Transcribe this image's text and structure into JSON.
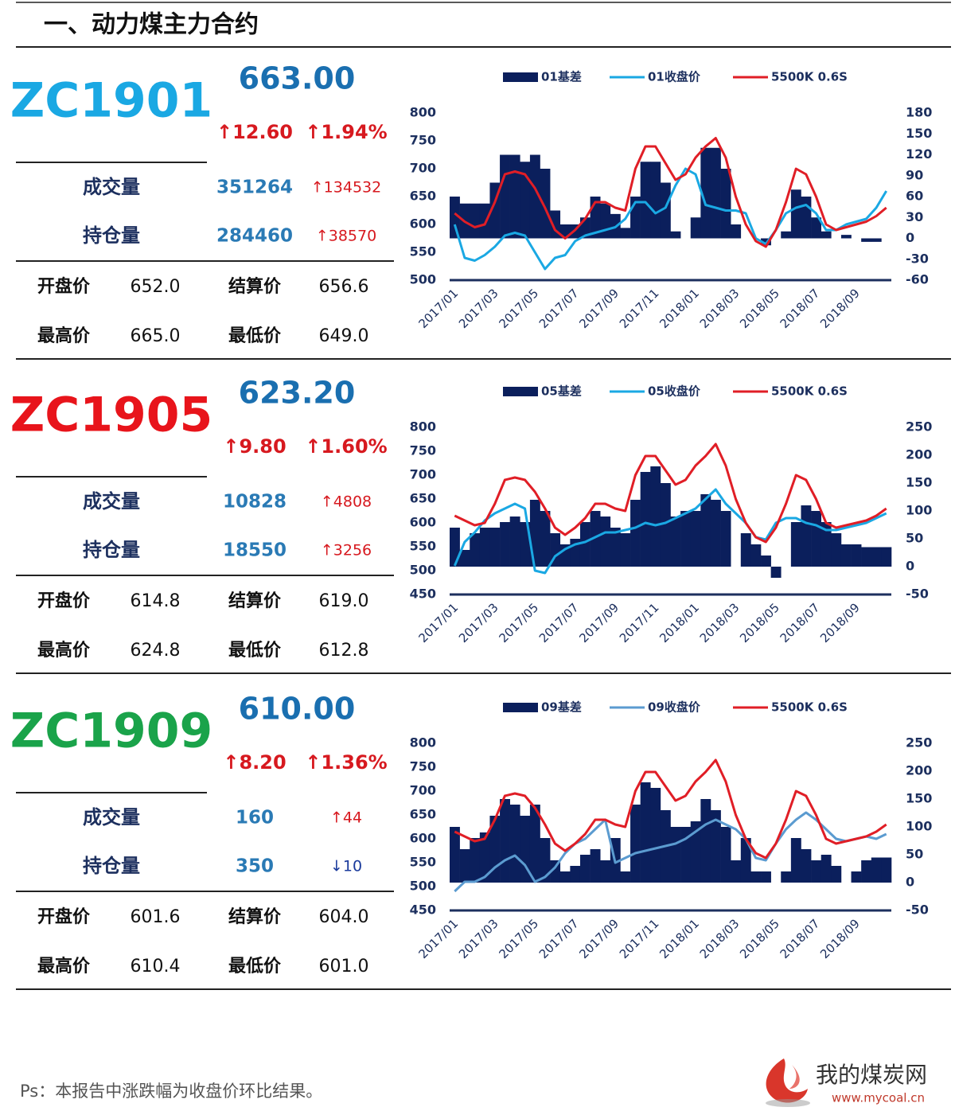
{
  "header": {
    "title": "一、动力煤主力合约"
  },
  "labels": {
    "volume": "成交量",
    "oi": "持仓量",
    "open": "开盘价",
    "settle": "结算价",
    "high": "最高价",
    "low": "最低价"
  },
  "contracts": [
    {
      "code": "ZC1901",
      "code_color": "#1aa8e3",
      "price": "663.00",
      "change": "↑12.60",
      "change_pct": "↑1.94%",
      "volume": "351264",
      "volume_change": "↑134532",
      "oi": "284460",
      "oi_change": "↑38570",
      "open": "652.0",
      "settle": "656.6",
      "high": "665.0",
      "low": "649.0",
      "chart_data": {
        "type": "bar-line",
        "categories": [
          "2017/01",
          null,
          null,
          null,
          "2017/03",
          null,
          null,
          null,
          "2017/05",
          null,
          null,
          null,
          "2017/07",
          null,
          null,
          null,
          "2017/09",
          null,
          null,
          null,
          "2017/11",
          null,
          null,
          null,
          "2018/01",
          null,
          null,
          null,
          "2018/03",
          null,
          null,
          null,
          "2018/05",
          null,
          null,
          null,
          "2018/07",
          null,
          null,
          null,
          "2018/09",
          null,
          null,
          null
        ],
        "ylim": [
          500,
          800
        ],
        "yticks": [
          500,
          550,
          600,
          650,
          700,
          750,
          800
        ],
        "y2lim": [
          -60,
          180
        ],
        "y2ticks": [
          -60,
          -30,
          0,
          30,
          60,
          90,
          120,
          150,
          180
        ],
        "series": [
          {
            "name": "01基差",
            "type": "bar",
            "axis": "y2",
            "color": "#0b1f5c",
            "values": [
              60,
              50,
              50,
              50,
              80,
              120,
              120,
              110,
              120,
              100,
              40,
              20,
              20,
              30,
              60,
              50,
              35,
              15,
              60,
              110,
              110,
              80,
              10,
              0,
              30,
              130,
              130,
              100,
              20,
              0,
              0,
              -10,
              0,
              10,
              70,
              60,
              30,
              10,
              0,
              5,
              0,
              -5,
              -5,
              0
            ]
          },
          {
            "name": "01收盘价",
            "type": "line",
            "color": "#1aa8e3",
            "values": [
              600,
              540,
              535,
              545,
              560,
              580,
              585,
              580,
              550,
              520,
              540,
              545,
              570,
              580,
              585,
              590,
              595,
              610,
              640,
              640,
              620,
              630,
              670,
              700,
              690,
              635,
              630,
              625,
              625,
              620,
              575,
              565,
              590,
              620,
              630,
              635,
              620,
              590,
              590,
              600,
              605,
              610,
              630,
              660
            ]
          },
          {
            "name": "5500K 0.6S",
            "type": "line",
            "color": "#e01e26",
            "values": [
              620,
              605,
              595,
              600,
              640,
              690,
              695,
              690,
              665,
              630,
              590,
              575,
              590,
              610,
              640,
              640,
              630,
              625,
              700,
              740,
              740,
              710,
              680,
              690,
              720,
              740,
              755,
              720,
              650,
              600,
              570,
              560,
              590,
              640,
              700,
              690,
              650,
              600,
              590,
              595,
              600,
              605,
              615,
              630
            ]
          }
        ]
      }
    },
    {
      "code": "ZC1905",
      "code_color": "#e8141b",
      "price": "623.20",
      "change": "↑9.80",
      "change_pct": "↑1.60%",
      "volume": "10828",
      "volume_change": "↑4808",
      "oi": "18550",
      "oi_change": "↑3256",
      "open": "614.8",
      "settle": "619.0",
      "high": "624.8",
      "low": "612.8",
      "chart_data": {
        "type": "bar-line",
        "categories": [
          "2017/01",
          null,
          null,
          null,
          "2017/03",
          null,
          null,
          null,
          "2017/05",
          null,
          null,
          null,
          "2017/07",
          null,
          null,
          null,
          "2017/09",
          null,
          null,
          null,
          "2017/11",
          null,
          null,
          null,
          "2018/01",
          null,
          null,
          null,
          "2018/03",
          null,
          null,
          null,
          "2018/05",
          null,
          null,
          null,
          "2018/07",
          null,
          null,
          null,
          "2018/09",
          null,
          null,
          null
        ],
        "ylim": [
          450,
          800
        ],
        "yticks": [
          450,
          500,
          550,
          600,
          650,
          700,
          750,
          800
        ],
        "y2lim": [
          -50,
          250
        ],
        "y2ticks": [
          -50,
          0,
          50,
          100,
          150,
          200,
          250
        ],
        "series": [
          {
            "name": "05基差",
            "type": "bar",
            "axis": "y2",
            "color": "#0b1f5c",
            "values": [
              70,
              30,
              60,
              70,
              70,
              80,
              90,
              80,
              120,
              100,
              60,
              40,
              50,
              80,
              100,
              90,
              70,
              60,
              120,
              170,
              180,
              150,
              90,
              100,
              100,
              130,
              120,
              100,
              0,
              60,
              40,
              20,
              -20,
              0,
              80,
              110,
              100,
              80,
              60,
              40,
              40,
              35,
              35,
              35
            ]
          },
          {
            "name": "05收盘价",
            "type": "line",
            "color": "#1aa8e3",
            "values": [
              510,
              560,
              580,
              605,
              620,
              630,
              640,
              630,
              500,
              495,
              530,
              545,
              555,
              560,
              570,
              580,
              580,
              585,
              590,
              600,
              595,
              600,
              610,
              620,
              630,
              650,
              670,
              640,
              620,
              600,
              570,
              565,
              600,
              610,
              610,
              600,
              595,
              585,
              585,
              590,
              595,
              600,
              610,
              620
            ]
          },
          {
            "name": "5500K 0.6S",
            "type": "line",
            "color": "#e01e26",
            "values": [
              615,
              605,
              595,
              600,
              640,
              690,
              695,
              690,
              665,
              630,
              590,
              575,
              590,
              610,
              640,
              640,
              630,
              625,
              700,
              740,
              740,
              710,
              680,
              690,
              720,
              740,
              765,
              720,
              650,
              600,
              570,
              560,
              590,
              640,
              700,
              690,
              650,
              600,
              590,
              595,
              600,
              605,
              615,
              630
            ]
          }
        ]
      }
    },
    {
      "code": "ZC1909",
      "code_color": "#1aa34a",
      "price": "610.00",
      "change": "↑8.20",
      "change_pct": "↑1.36%",
      "volume": "160",
      "volume_change": "↑44",
      "oi": "350",
      "oi_change": "↓10",
      "open": "601.6",
      "settle": "604.0",
      "high": "610.4",
      "low": "601.0",
      "chart_data": {
        "type": "bar-line",
        "categories": [
          "2017/01",
          null,
          null,
          null,
          "2017/03",
          null,
          null,
          null,
          "2017/05",
          null,
          null,
          null,
          "2017/07",
          null,
          null,
          null,
          "2017/09",
          null,
          null,
          null,
          "2017/11",
          null,
          null,
          null,
          "2018/01",
          null,
          null,
          null,
          "2018/03",
          null,
          null,
          null,
          "2018/05",
          null,
          null,
          null,
          "2018/07",
          null,
          null,
          null,
          "2018/09",
          null,
          null,
          null
        ],
        "ylim": [
          450,
          800
        ],
        "yticks": [
          450,
          500,
          550,
          600,
          650,
          700,
          750,
          800
        ],
        "y2lim": [
          -50,
          250
        ],
        "y2ticks": [
          -50,
          0,
          50,
          100,
          150,
          200,
          250
        ],
        "series": [
          {
            "name": "09基差",
            "type": "bar",
            "axis": "y2",
            "color": "#0b1f5c",
            "values": [
              100,
              60,
              80,
              90,
              120,
              150,
              140,
              120,
              140,
              80,
              40,
              20,
              30,
              50,
              60,
              40,
              80,
              20,
              140,
              180,
              170,
              130,
              100,
              100,
              110,
              150,
              130,
              100,
              40,
              80,
              20,
              20,
              0,
              20,
              80,
              60,
              40,
              50,
              30,
              0,
              20,
              40,
              45,
              45
            ]
          },
          {
            "name": "09收盘价",
            "type": "line",
            "color": "#5b9bd0",
            "values": [
              490,
              510,
              510,
              520,
              540,
              555,
              565,
              545,
              510,
              520,
              540,
              570,
              590,
              600,
              620,
              640,
              550,
              560,
              570,
              575,
              580,
              585,
              590,
              600,
              615,
              630,
              640,
              630,
              620,
              600,
              560,
              555,
              590,
              620,
              640,
              655,
              640,
              620,
              600,
              595,
              600,
              605,
              600,
              610
            ]
          },
          {
            "name": "5500K 0.6S",
            "type": "line",
            "color": "#e01e26",
            "values": [
              615,
              605,
              595,
              600,
              640,
              690,
              695,
              690,
              665,
              630,
              590,
              575,
              590,
              610,
              640,
              640,
              630,
              625,
              700,
              740,
              740,
              710,
              680,
              690,
              720,
              740,
              765,
              720,
              650,
              600,
              570,
              560,
              590,
              640,
              700,
              690,
              650,
              600,
              590,
              595,
              600,
              605,
              615,
              630
            ]
          }
        ]
      }
    }
  ],
  "footer": {
    "note": "Ps：本报告中涨跌幅为收盘价环比结果。",
    "logo": "我的煤炭网",
    "url": "www.mycoal.cn"
  }
}
